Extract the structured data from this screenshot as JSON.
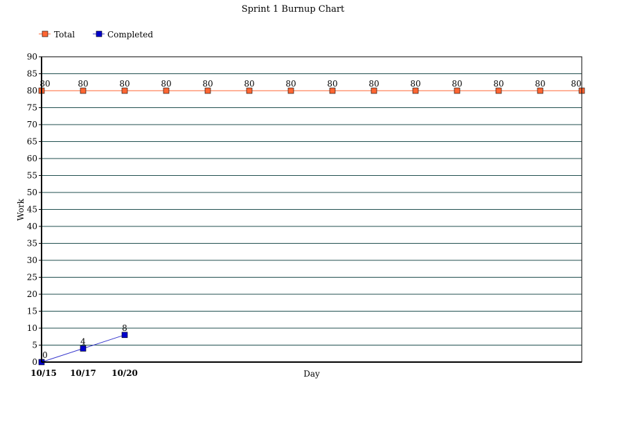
{
  "chart_data": {
    "type": "line",
    "title": "Sprint 1 Burnup Chart",
    "xlabel": "Day",
    "ylabel": "Work",
    "ylim": [
      0,
      90
    ],
    "yticks": [
      0,
      5,
      10,
      15,
      20,
      25,
      30,
      35,
      40,
      45,
      50,
      55,
      60,
      65,
      70,
      75,
      80,
      85,
      90
    ],
    "x_tick_labels": [
      "10/15",
      "10/17",
      "10/20"
    ],
    "grid": true,
    "legend": "top-left",
    "series": [
      {
        "name": "Total",
        "color": "#FF6633",
        "marker_color": "#FF6633",
        "values": [
          80,
          80,
          80,
          80,
          80,
          80,
          80,
          80,
          80,
          80,
          80,
          80,
          80,
          80
        ],
        "data_labels": [
          "80",
          "80",
          "80",
          "80",
          "80",
          "80",
          "80",
          "80",
          "80",
          "80",
          "80",
          "80",
          "80",
          "80"
        ]
      },
      {
        "name": "Completed",
        "color": "#3333CC",
        "marker_color": "#0000CC",
        "values": [
          0,
          4,
          8
        ],
        "data_labels": [
          "0",
          "4",
          "8"
        ]
      }
    ]
  }
}
